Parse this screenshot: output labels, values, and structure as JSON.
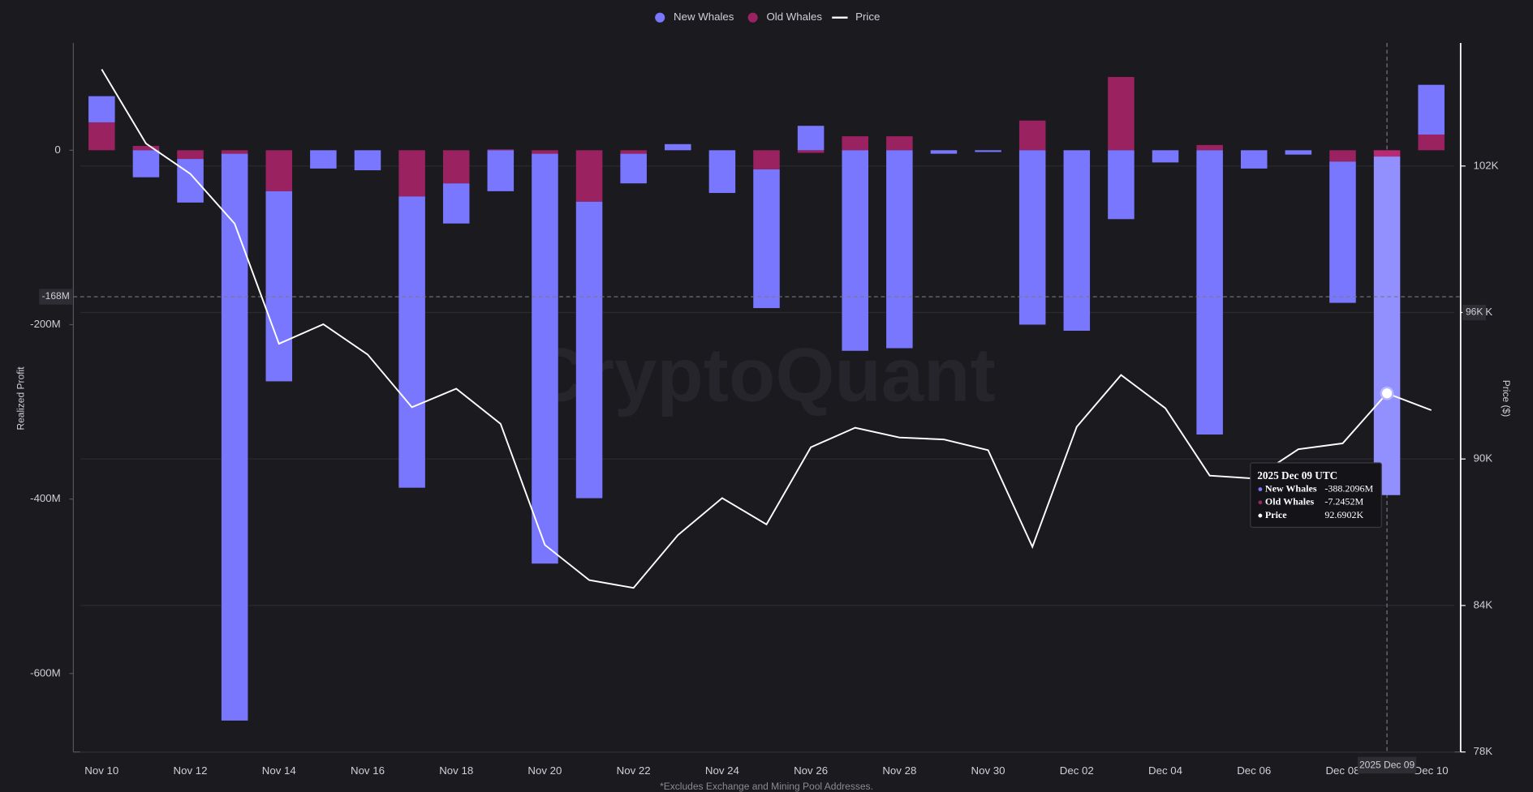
{
  "chart_data": {
    "type": "bar",
    "stacked": true,
    "categories": [
      "Nov 10",
      null,
      "Nov 12",
      null,
      "Nov 14",
      null,
      "Nov 16",
      null,
      "Nov 18",
      null,
      "Nov 20",
      null,
      "Nov 22",
      null,
      "Nov 24",
      null,
      "Nov 26",
      null,
      "Nov 28",
      null,
      "Nov 30",
      null,
      "Dec 02",
      null,
      "Dec 04",
      null,
      "Dec 06",
      null,
      "Dec 08",
      null,
      "Dec 10"
    ],
    "series": [
      {
        "name": "New Whales",
        "color": "#7a77ff",
        "values": [
          30,
          -31,
          -50,
          -650,
          -218,
          -21,
          -23,
          -334,
          -46,
          -47,
          -470,
          -340,
          -34,
          7,
          -49,
          -159,
          28,
          -230,
          -227,
          -4,
          -2,
          -200,
          -207,
          -79,
          -14,
          -326,
          -21,
          -5,
          -162,
          -388.2096,
          57
        ]
      },
      {
        "name": "Old Whales",
        "color": "#9b2260",
        "values": [
          32,
          5,
          -10,
          -4,
          -47,
          0,
          0,
          -53,
          -38,
          1,
          -4,
          -59,
          -4,
          0,
          0,
          -22,
          -3,
          16,
          16,
          0,
          0,
          34,
          0,
          84,
          0,
          6,
          0,
          0,
          -13,
          -7.2452,
          18
        ]
      },
      {
        "name": "Price",
        "color": "#ffffff",
        "type": "line",
        "axis": "y2",
        "values": [
          105.96,
          102.92,
          101.68,
          99.64,
          94.72,
          95.52,
          94.28,
          92.12,
          92.88,
          91.44,
          86.48,
          85.04,
          84.72,
          86.88,
          88.4,
          87.32,
          90.48,
          91.28,
          90.88,
          90.8,
          90.36,
          86.4,
          91.32,
          93.44,
          92.08,
          89.32,
          89.2,
          90.4,
          90.64,
          92.6902,
          92.0
        ]
      }
    ],
    "ylabel": "Realized Profit",
    "y2label": "Price ($)",
    "ylim": [
      -690,
      123
    ],
    "yticks": [
      0,
      {
        "value": -200,
        "label": "-200M"
      },
      {
        "value": -400,
        "label": "-400M"
      },
      {
        "value": -600,
        "label": "-600M"
      }
    ],
    "y2lim": [
      78,
      107.04
    ],
    "y2ticks": [
      {
        "value": 78,
        "label": "78K"
      },
      {
        "value": 84,
        "label": "84K"
      },
      {
        "value": 90,
        "label": "90K"
      },
      {
        "value": 96,
        "label": "96K"
      },
      {
        "value": 102,
        "label": "102K"
      }
    ],
    "grid": "y2",
    "legend": "top",
    "watermark": "CryptoQuant",
    "footnote": "*Excludes Exchange and Mining Pool Addresses.",
    "crosshair": {
      "y": {
        "value": -168,
        "label": "-168M"
      },
      "y2": {
        "value": 96,
        "label": "96K"
      },
      "x_label": "2025 Dec 09"
    },
    "tooltip": {
      "title": "2025 Dec 09 UTC",
      "values": [
        "-388.2096M",
        "-7.2452M",
        "92.6902K"
      ]
    }
  }
}
